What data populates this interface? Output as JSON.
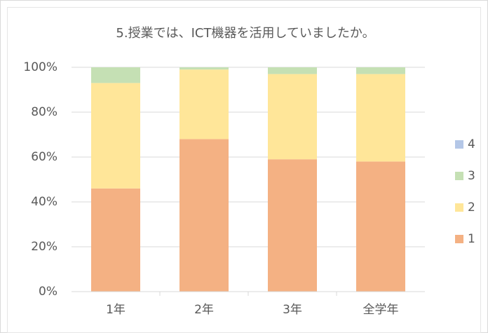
{
  "chart_data": {
    "type": "stacked_bar",
    "title": "5.授業では、ICT機器を活用していましたか。",
    "categories": [
      "1年",
      "2年",
      "3年",
      "全学年"
    ],
    "series": [
      {
        "name": "1",
        "color": "#f4b183",
        "values": [
          46,
          68,
          59,
          58
        ]
      },
      {
        "name": "2",
        "color": "#ffe699",
        "values": [
          47,
          31,
          38,
          39
        ]
      },
      {
        "name": "3",
        "color": "#c5e0b4",
        "values": [
          7,
          1,
          3,
          3
        ]
      },
      {
        "name": "4",
        "color": "#b4c7e7",
        "values": [
          0,
          0,
          0,
          0
        ]
      }
    ],
    "ylim": [
      0,
      100
    ],
    "yticks": [
      {
        "value": 0,
        "label": "0%"
      },
      {
        "value": 20,
        "label": "20%"
      },
      {
        "value": 40,
        "label": "40%"
      },
      {
        "value": 60,
        "label": "60%"
      },
      {
        "value": 80,
        "label": "80%"
      },
      {
        "value": 100,
        "label": "100%"
      }
    ],
    "grid": true,
    "legend": "right"
  }
}
